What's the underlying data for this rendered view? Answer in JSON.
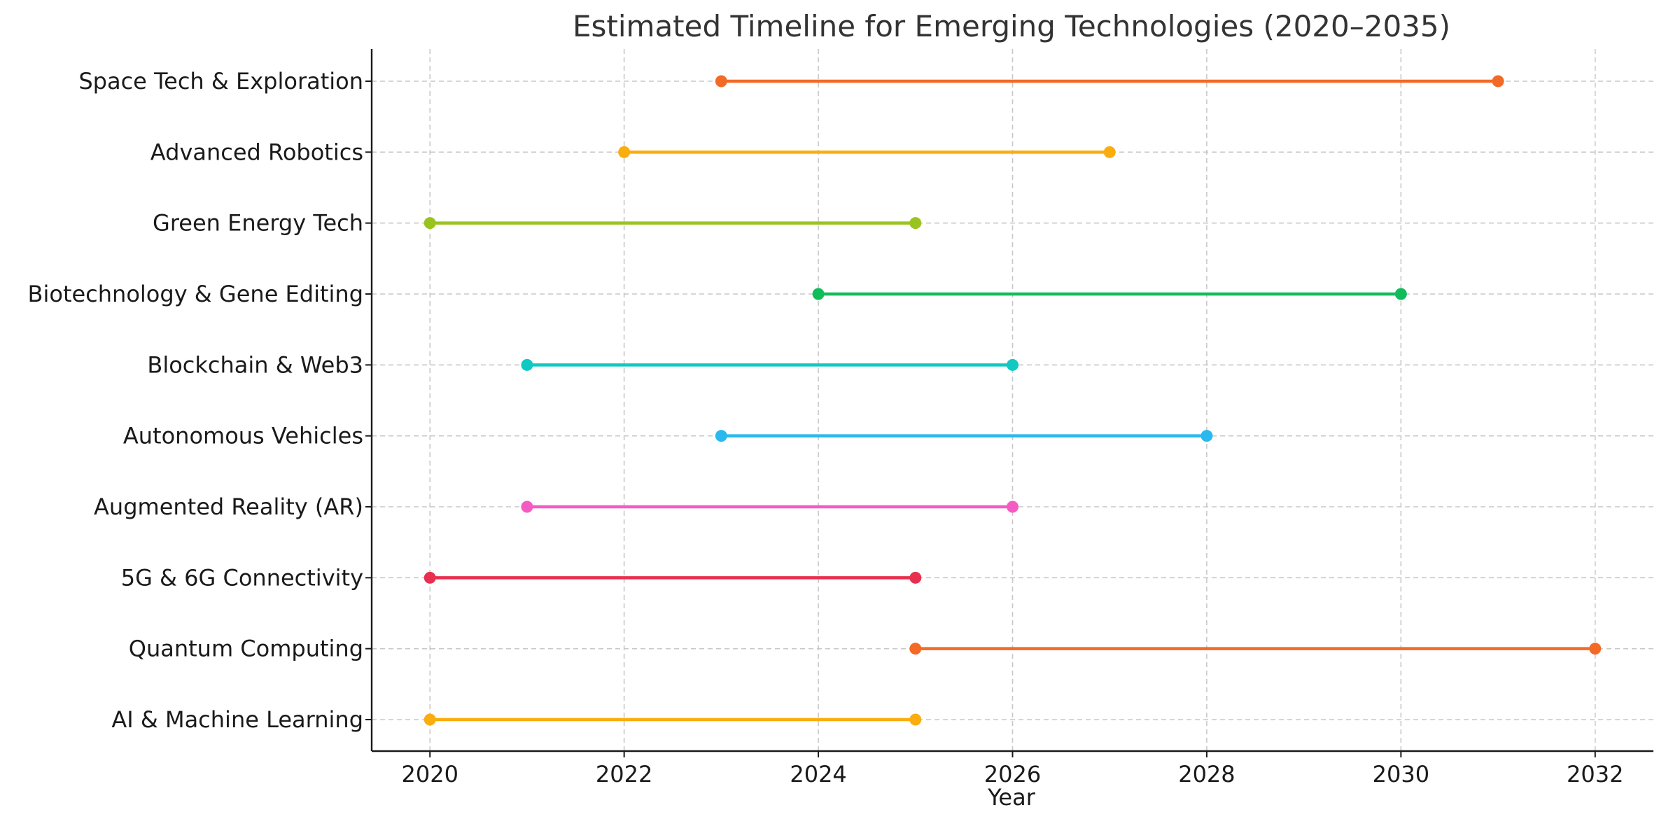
{
  "chart_data": {
    "type": "timeline",
    "title": "Estimated Timeline for Emerging Technologies (2020–2035)",
    "xlabel": "Year",
    "ylabel": "",
    "xlim": [
      2019.4,
      2032.6
    ],
    "xticks": [
      2020,
      2022,
      2024,
      2026,
      2028,
      2030,
      2032
    ],
    "grid": true,
    "series": [
      {
        "label": "AI & Machine Learning",
        "start": 2020,
        "end": 2025,
        "color": "#f9ad0f"
      },
      {
        "label": "Quantum Computing",
        "start": 2025,
        "end": 2032,
        "color": "#f26a26"
      },
      {
        "label": "5G & 6G Connectivity",
        "start": 2020,
        "end": 2025,
        "color": "#e8304e"
      },
      {
        "label": "Augmented Reality (AR)",
        "start": 2021,
        "end": 2026,
        "color": "#f45cc3"
      },
      {
        "label": "Autonomous Vehicles",
        "start": 2023,
        "end": 2028,
        "color": "#29b9ef"
      },
      {
        "label": "Blockchain & Web3",
        "start": 2021,
        "end": 2026,
        "color": "#10c9c3"
      },
      {
        "label": "Biotechnology & Gene Editing",
        "start": 2024,
        "end": 2030,
        "color": "#10bd5a"
      },
      {
        "label": "Green Energy Tech",
        "start": 2020,
        "end": 2025,
        "color": "#9bc31f"
      },
      {
        "label": "Advanced Robotics",
        "start": 2022,
        "end": 2027,
        "color": "#f9ad0f"
      },
      {
        "label": "Space Tech & Exploration",
        "start": 2023,
        "end": 2031,
        "color": "#f26a26"
      }
    ]
  }
}
